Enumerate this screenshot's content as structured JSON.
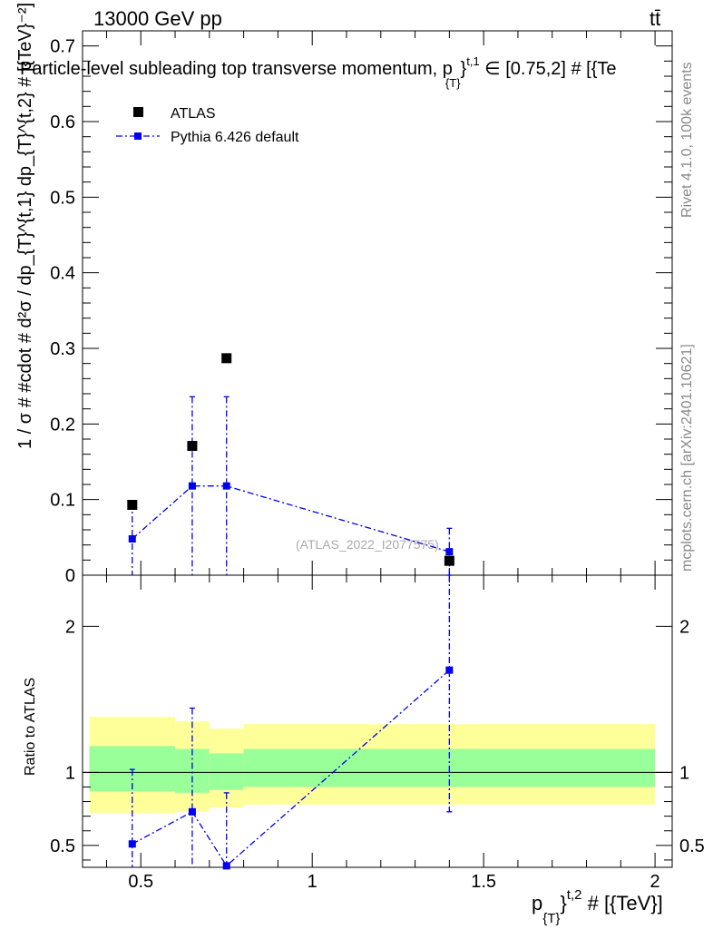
{
  "header": {
    "beam_label": "13000 GeV pp",
    "process_label": "tt̄",
    "title_main": "Particle-level subleading top transverse momentum, p",
    "title_sub_T": "{T}",
    "title_sup": "}",
    "title_sup_t1": "t,1",
    "title_tail": " ∈ [0.75,2] # [{Te"
  },
  "side_labels": {
    "rivet": "Rivet 4.1.0,  100k events",
    "mcplots": "mcplots.cern.ch [arXiv:2401.10621]"
  },
  "watermark": "(ATLAS_2022_I2077575)",
  "legend": {
    "atlas": "ATLAS",
    "pythia": "Pythia 6.426 default"
  },
  "axes": {
    "ylabel_main": "1 / σ # #cdot # d²σ / dp_{T}^{t,1} dp_{T}^{t,2} # [{TeV}⁻²]",
    "ylabel_ratio": "Ratio to ATLAS",
    "xlabel_p": "p",
    "xlabel_sub": "{T}",
    "xlabel_sup": "}",
    "xlabel_sup2": "t,2",
    "xlabel_tail": " # [{TeV}]"
  },
  "colors": {
    "data": "#000000",
    "mc": "#0000ee",
    "band_inner": "#99ff99",
    "band_outer": "#ffff99"
  },
  "chart_data": [
    {
      "type": "scatter",
      "panel": "main",
      "xlim": [
        0.33,
        2.05
      ],
      "ylim": [
        0,
        0.72
      ],
      "yticks": [
        0,
        0.1,
        0.2,
        0.3,
        0.4,
        0.5,
        0.6,
        0.7
      ],
      "ytick_labels": [
        "0",
        "0.1",
        "0.2",
        "0.3",
        "0.4",
        "0.5",
        "0.6",
        "0.7"
      ],
      "series": [
        {
          "name": "ATLAS",
          "x": [
            0.475,
            0.65,
            0.75,
            1.4
          ],
          "y": [
            0.093,
            0.171,
            0.287,
            0.019
          ]
        },
        {
          "name": "Pythia 6.426 default",
          "x": [
            0.475,
            0.65,
            0.75,
            1.4
          ],
          "y": [
            0.048,
            0.118,
            0.118,
            0.031
          ],
          "yerr_low": [
            0.048,
            0.118,
            0.118,
            0.031
          ],
          "yerr_high": [
            0.048,
            0.118,
            0.118,
            0.031
          ]
        }
      ]
    },
    {
      "type": "scatter",
      "panel": "ratio",
      "xlim": [
        0.33,
        2.05
      ],
      "ylim": [
        0.35,
        2.35
      ],
      "xticks": [
        0.5,
        1,
        1.5,
        2
      ],
      "xtick_labels": [
        "0.5",
        "1",
        "1.5",
        "2"
      ],
      "yticks": [
        0.5,
        1,
        2
      ],
      "ytick_labels": [
        "0.5",
        "1",
        "2"
      ],
      "band_edges": [
        0.35,
        0.6,
        0.7,
        0.8,
        2.0
      ],
      "band_inner_low": [
        0.87,
        0.86,
        0.88,
        0.9
      ],
      "band_inner_high": [
        1.18,
        1.16,
        1.13,
        1.16
      ],
      "band_outer_low": [
        0.72,
        0.73,
        0.76,
        0.78
      ],
      "band_outer_high": [
        1.38,
        1.35,
        1.3,
        1.33
      ],
      "series": [
        {
          "name": "Pythia 6.426 default",
          "x": [
            0.475,
            0.65,
            0.75,
            1.4
          ],
          "y": [
            0.51,
            0.73,
            0.36,
            1.7
          ],
          "yerr_low": [
            0.51,
            0.73,
            0.36,
            0.97
          ],
          "yerr_high": [
            0.51,
            0.71,
            0.5,
            0.97
          ]
        }
      ]
    }
  ]
}
